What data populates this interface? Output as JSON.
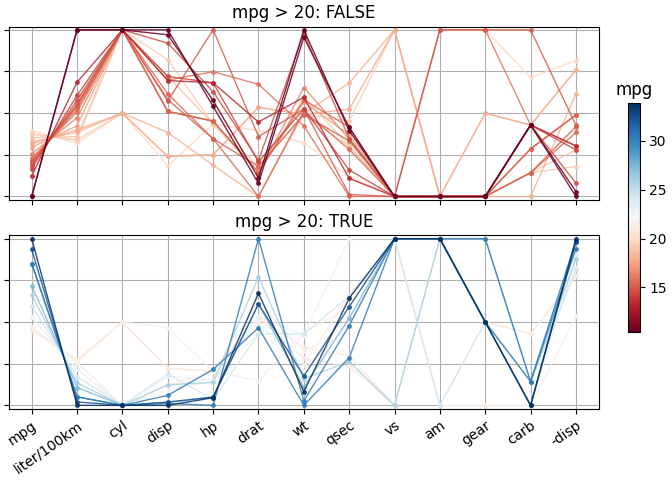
{
  "chart_data": [
    {
      "type": "line",
      "title": "mpg > 20: FALSE",
      "categories": [
        "mpg",
        "liter/100km",
        "cyl",
        "disp",
        "hp",
        "drat",
        "wt",
        "qsec",
        "vs",
        "am",
        "gear",
        "carb",
        "-disp"
      ],
      "ylim": [
        -0.02,
        1.02
      ],
      "yticks": [
        0,
        0.25,
        0.5,
        0.75,
        1
      ],
      "grid": true,
      "tick_labels": false,
      "colorbar_range": [
        10.4,
        33.9
      ],
      "colorbar_ticks": [
        15,
        20,
        25,
        30
      ],
      "colorbar_label": "mpg",
      "series": [
        {
          "color_value": 19.7,
          "values": [
            0.3957,
            0.319,
            0.5,
            0.1843,
            0.4346,
            0.3963,
            0.3214,
            0.119,
            0,
            1,
            1,
            0.7143,
            0.8157
          ]
        },
        {
          "color_value": 19.2,
          "values": [
            0.3745,
            0.3388,
            0.5,
            0.2407,
            0.2509,
            0.5346,
            0.4927,
            0.4524,
            1,
            0,
            0.5,
            0.4286,
            0.7593
          ]
        },
        {
          "color_value": 19.2,
          "values": [
            0.3745,
            0.3388,
            1,
            0.8204,
            0.4346,
            0.1475,
            0.5963,
            0.3036,
            0,
            0,
            0,
            0.1429,
            0.1796
          ]
        },
        {
          "color_value": 18.7,
          "values": [
            0.3532,
            0.3597,
            1,
            0.7206,
            0.4346,
            0.1797,
            0.4927,
            0.3,
            0,
            0,
            0,
            0.1429,
            0.2794
          ]
        },
        {
          "color_value": 18.1,
          "values": [
            0.3277,
            0.3863,
            0.5,
            0.3839,
            0.1873,
            0,
            0.4978,
            0.681,
            1,
            0,
            0,
            0,
            0.6161
          ]
        },
        {
          "color_value": 17.8,
          "values": [
            0.3149,
            0.4003,
            0.5,
            0.2407,
            0.2509,
            0.5346,
            0.4927,
            0.5238,
            1,
            0,
            0.5,
            0.4286,
            0.7593
          ]
        },
        {
          "color_value": 17.3,
          "values": [
            0.2936,
            0.4246,
            1,
            0.5106,
            0.4523,
            0.1429,
            0.5669,
            0.369,
            0,
            0,
            0,
            0.2857,
            0.4894
          ]
        },
        {
          "color_value": 16.4,
          "values": [
            0.2553,
            0.4722,
            1,
            0.5106,
            0.4523,
            0.1429,
            0.6538,
            0.3452,
            0,
            0,
            0,
            0.2857,
            0.4894
          ]
        },
        {
          "color_value": 15.8,
          "values": [
            0.2298,
            0.507,
            1,
            0.6982,
            0.7491,
            0.6728,
            0.4237,
            0,
            0,
            1,
            1,
            0.4286,
            0.3018
          ]
        },
        {
          "color_value": 15.5,
          "values": [
            0.217,
            0.5254,
            1,
            0.6159,
            0.3463,
            0,
            0.5132,
            0.2821,
            0,
            0,
            0,
            0.1429,
            0.3841
          ]
        },
        {
          "color_value": 15.2,
          "values": [
            0.2043,
            0.5445,
            1,
            0.5106,
            0.4523,
            0.1429,
            0.5796,
            0.4167,
            0,
            0,
            0,
            0.2857,
            0.4894
          ]
        },
        {
          "color_value": 15.2,
          "values": [
            0.2043,
            0.5445,
            1,
            0.5809,
            0.3463,
            0.1797,
            0.4914,
            0.3333,
            0,
            0,
            0,
            0.1429,
            0.4191
          ]
        },
        {
          "color_value": 15.0,
          "values": [
            0.1957,
            0.5576,
            1,
            0.5735,
            1,
            0.3594,
            0.526,
            0.0119,
            0,
            1,
            1,
            1,
            0.4265
          ]
        },
        {
          "color_value": 14.7,
          "values": [
            0.183,
            0.578,
            1,
            0.9202,
            0.629,
            0.2166,
            0.9798,
            0.3476,
            0,
            0,
            0,
            0.4286,
            0.0798
          ]
        },
        {
          "color_value": 14.3,
          "values": [
            0.166,
            0.6066,
            1,
            0.7206,
            0.682,
            0.2074,
            0.526,
            0.1595,
            0,
            0,
            0,
            0.4286,
            0.2794
          ]
        },
        {
          "color_value": 13.3,
          "values": [
            0.1234,
            0.6855,
            1,
            0.6957,
            0.682,
            0.447,
            0.595,
            0.1083,
            0,
            0,
            0,
            0.4286,
            0.3043
          ]
        },
        {
          "color_value": 10.4,
          "values": [
            0,
            1,
            1,
            1,
            0.5406,
            0.0783,
            0.9555,
            0.4143,
            0,
            0,
            0,
            0.4286,
            0
          ]
        },
        {
          "color_value": 10.4,
          "values": [
            0,
            1,
            1,
            0.9701,
            0.576,
            0.1106,
            1,
            0.3952,
            0,
            0,
            0,
            0.4286,
            0.0299
          ]
        }
      ]
    },
    {
      "type": "line",
      "title": "mpg > 20: TRUE",
      "categories": [
        "mpg",
        "liter/100km",
        "cyl",
        "disp",
        "hp",
        "drat",
        "wt",
        "qsec",
        "vs",
        "am",
        "gear",
        "carb",
        "-disp"
      ],
      "ylim": [
        -0.02,
        1.02
      ],
      "yticks": [
        0,
        0.25,
        0.5,
        0.75,
        1
      ],
      "grid": true,
      "tick_labels": "x",
      "series": [
        {
          "color_value": 21.0,
          "values": [
            0.4511,
            0.2719,
            0.5,
            0.2218,
            0.2049,
            0.5253,
            0.283,
            0.2333,
            0,
            1,
            0.5,
            0.4286,
            0.7782
          ]
        },
        {
          "color_value": 21.0,
          "values": [
            0.4511,
            0.2719,
            0.5,
            0.2218,
            0.2049,
            0.5253,
            0.3482,
            0.3,
            0,
            1,
            0.5,
            0.4286,
            0.7782
          ]
        },
        {
          "color_value": 21.4,
          "values": [
            0.4681,
            0.2585,
            0.5,
            0.4662,
            0.2049,
            0.1475,
            0.4352,
            0.5881,
            1,
            0,
            0,
            0,
            0.5338
          ]
        },
        {
          "color_value": 21.4,
          "values": [
            0.4681,
            0.2585,
            0,
            0.1245,
            0.2014,
            0.6221,
            0.324,
            0.4881,
            1,
            1,
            0.5,
            0.1429,
            0.8755
          ]
        },
        {
          "color_value": 21.5,
          "values": [
            0.4723,
            0.2552,
            0,
            0.1222,
            0.159,
            0.4332,
            0.2434,
            0.656,
            1,
            0,
            0,
            0,
            0.8778
          ]
        },
        {
          "color_value": 22.8,
          "values": [
            0.5277,
            0.2155,
            0,
            0.092,
            0.1449,
            0.5023,
            0.2063,
            0.4893,
            1,
            1,
            0.5,
            0,
            0.908
          ]
        },
        {
          "color_value": 22.8,
          "values": [
            0.5277,
            0.2155,
            0,
            0.1739,
            0.1519,
            0.5346,
            0.4186,
            1,
            1,
            0,
            0.5,
            0.1429,
            0.8261
          ]
        },
        {
          "color_value": 24.4,
          "values": [
            0.5957,
            0.1723,
            0,
            0.1886,
            0.0353,
            0.4286,
            0.4288,
            0.6548,
            1,
            0,
            0.5,
            0.1429,
            0.8114
          ]
        },
        {
          "color_value": 26.0,
          "values": [
            0.6638,
            0.1345,
            0,
            0.1227,
            0.1378,
            0.7696,
            0.1603,
            0.2619,
            0,
            1,
            1,
            0.1429,
            0.8773
          ]
        },
        {
          "color_value": 27.3,
          "values": [
            0.7191,
            0.107,
            0,
            0.0197,
            0.0495,
            0.6083,
            0.1079,
            0.5238,
            1,
            1,
            0.5,
            0,
            0.9803
          ]
        },
        {
          "color_value": 30.4,
          "values": [
            0.8511,
            0.051,
            0,
            0.0115,
            0,
            1,
            0.0261,
            0.4786,
            1,
            1,
            0.5,
            0.1429,
            0.9885
          ]
        },
        {
          "color_value": 30.4,
          "values": [
            0.8511,
            0.051,
            0,
            0.0599,
            0.2155,
            0.4654,
            0,
            0.2857,
            1,
            1,
            1,
            0.1429,
            0.9401
          ]
        },
        {
          "color_value": 32.4,
          "values": [
            0.9362,
            0.0205,
            0,
            0.019,
            0.0495,
            0.6083,
            0.1757,
            0.5917,
            1,
            1,
            0.5,
            0,
            0.981
          ]
        },
        {
          "color_value": 33.9,
          "values": [
            1,
            0,
            0,
            0,
            0.0459,
            0.6728,
            0.0823,
            0.6429,
            1,
            1,
            0.5,
            0,
            1
          ]
        }
      ]
    }
  ]
}
